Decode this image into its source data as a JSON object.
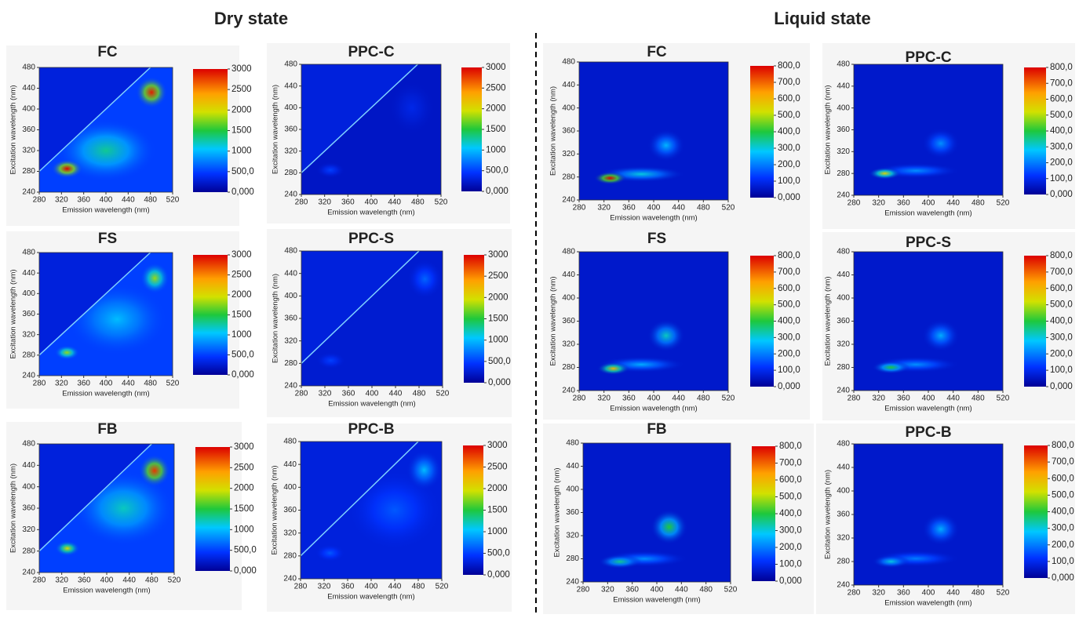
{
  "headings": {
    "dry": "Dry state",
    "liquid": "Liquid state"
  },
  "chart_data": [
    {
      "type": "heatmap",
      "title": "FC",
      "x_label": "Emission wavelength (nm)",
      "y_label": "Excitation wavelength (nm)",
      "xlim": [
        280,
        520
      ],
      "ylim": [
        240,
        480
      ],
      "xticks": [
        280,
        320,
        360,
        400,
        440,
        480,
        520
      ],
      "yticks": [
        240,
        280,
        320,
        360,
        400,
        440,
        480
      ],
      "colorbar_lim": [
        0,
        3000
      ],
      "colorbar_ticks": [
        {
          "value": 0,
          "label": "0,000"
        },
        {
          "value": 500,
          "label": "500,0"
        },
        1000,
        1500,
        2000,
        2500,
        3000
      ],
      "rayleigh_line": true,
      "base": 500,
      "peaks": [
        {
          "x": 400,
          "y": 320,
          "value": 1300,
          "sx": 90,
          "sy": 60
        },
        {
          "x": 330,
          "y": 285,
          "value": 3000,
          "sx": 28,
          "sy": 18
        },
        {
          "x": 482,
          "y": 432,
          "value": 2900,
          "sx": 28,
          "sy": 30
        }
      ]
    },
    {
      "type": "heatmap",
      "title": "FS",
      "x_label": "Emission wavelength (nm)",
      "y_label": "Excitation wavelength (nm)",
      "xlim": [
        280,
        520
      ],
      "ylim": [
        240,
        480
      ],
      "xticks": [
        280,
        320,
        360,
        400,
        440,
        480,
        520
      ],
      "yticks": [
        240,
        280,
        320,
        360,
        400,
        440,
        480
      ],
      "colorbar_lim": [
        0,
        3000
      ],
      "colorbar_ticks": [
        {
          "value": 0,
          "label": "0,000"
        },
        {
          "value": 500,
          "label": "500,0"
        },
        1000,
        1500,
        2000,
        2500,
        3000
      ],
      "rayleigh_line": true,
      "base": 500,
      "peaks": [
        {
          "x": 420,
          "y": 350,
          "value": 1000,
          "sx": 90,
          "sy": 70
        },
        {
          "x": 330,
          "y": 285,
          "value": 1800,
          "sx": 22,
          "sy": 14
        },
        {
          "x": 488,
          "y": 430,
          "value": 1800,
          "sx": 26,
          "sy": 30
        }
      ]
    },
    {
      "type": "heatmap",
      "title": "FB",
      "x_label": "Emission wavelength (nm)",
      "y_label": "Excitation wavelength (nm)",
      "xlim": [
        280,
        520
      ],
      "ylim": [
        240,
        480
      ],
      "xticks": [
        280,
        320,
        360,
        400,
        440,
        480,
        520
      ],
      "yticks": [
        240,
        280,
        320,
        360,
        400,
        440,
        480
      ],
      "colorbar_lim": [
        0,
        3000
      ],
      "colorbar_ticks": [
        {
          "value": 0,
          "label": "0,000"
        },
        {
          "value": 500,
          "label": "500,0"
        },
        1000,
        1500,
        2000,
        2500,
        3000
      ],
      "rayleigh_line": true,
      "base": 500,
      "peaks": [
        {
          "x": 430,
          "y": 360,
          "value": 1200,
          "sx": 90,
          "sy": 70
        },
        {
          "x": 330,
          "y": 285,
          "value": 2000,
          "sx": 22,
          "sy": 14
        },
        {
          "x": 485,
          "y": 430,
          "value": 2800,
          "sx": 28,
          "sy": 30
        }
      ]
    },
    {
      "type": "heatmap",
      "title": "PPC-C",
      "x_label": "Emission wavelength (nm)",
      "y_label": "Excitation wavelength (nm)",
      "xlim": [
        280,
        520
      ],
      "ylim": [
        240,
        480
      ],
      "xticks": [
        280,
        320,
        360,
        400,
        440,
        480,
        520
      ],
      "yticks": [
        240,
        280,
        320,
        360,
        400,
        440,
        480
      ],
      "colorbar_lim": [
        0,
        3000
      ],
      "colorbar_ticks": [
        {
          "value": 0,
          "label": "0,000"
        },
        {
          "value": 500,
          "label": "500,0"
        },
        1000,
        1500,
        2000,
        2500,
        3000
      ],
      "rayleigh_line": true,
      "base": 200,
      "peaks": [
        {
          "x": 330,
          "y": 285,
          "value": 500,
          "sx": 25,
          "sy": 15
        },
        {
          "x": 470,
          "y": 400,
          "value": 350,
          "sx": 40,
          "sy": 50
        }
      ]
    },
    {
      "type": "heatmap",
      "title": "PPC-S",
      "x_label": "Emission wavelength (nm)",
      "y_label": "Excitation wavelength (nm)",
      "xlim": [
        280,
        520
      ],
      "ylim": [
        240,
        480
      ],
      "xticks": [
        280,
        320,
        360,
        400,
        440,
        480,
        520
      ],
      "yticks": [
        240,
        280,
        320,
        360,
        400,
        440,
        480
      ],
      "colorbar_lim": [
        0,
        3000
      ],
      "colorbar_ticks": [
        {
          "value": 0,
          "label": "0,000"
        },
        {
          "value": 500,
          "label": "500,0"
        },
        1000,
        1500,
        2000,
        2500,
        3000
      ],
      "rayleigh_line": true,
      "base": 250,
      "peaks": [
        {
          "x": 330,
          "y": 285,
          "value": 500,
          "sx": 25,
          "sy": 15
        },
        {
          "x": 490,
          "y": 430,
          "value": 650,
          "sx": 30,
          "sy": 35
        }
      ]
    },
    {
      "type": "heatmap",
      "title": "PPC-B",
      "x_label": "Emission wavelength (nm)",
      "y_label": "Excitation wavelength (nm)",
      "xlim": [
        280,
        520
      ],
      "ylim": [
        240,
        480
      ],
      "xticks": [
        280,
        320,
        360,
        400,
        440,
        480,
        520
      ],
      "yticks": [
        240,
        280,
        320,
        360,
        400,
        440,
        480
      ],
      "colorbar_lim": [
        0,
        3000
      ],
      "colorbar_ticks": [
        {
          "value": 0,
          "label": "0,000"
        },
        {
          "value": 500,
          "label": "500,0"
        },
        1000,
        1500,
        2000,
        2500,
        3000
      ],
      "rayleigh_line": true,
      "base": 300,
      "peaks": [
        {
          "x": 440,
          "y": 360,
          "value": 600,
          "sx": 80,
          "sy": 70
        },
        {
          "x": 330,
          "y": 285,
          "value": 600,
          "sx": 25,
          "sy": 15
        },
        {
          "x": 490,
          "y": 430,
          "value": 1000,
          "sx": 30,
          "sy": 35
        }
      ]
    },
    {
      "type": "heatmap",
      "title": "FC",
      "x_label": "Emission wavelength (nm)",
      "y_label": "Excitation wavelength (nm)",
      "xlim": [
        280,
        520
      ],
      "ylim": [
        240,
        480
      ],
      "xticks": [
        280,
        320,
        360,
        400,
        440,
        480,
        520
      ],
      "yticks": [
        240,
        280,
        320,
        360,
        400,
        440,
        480
      ],
      "colorbar_lim": [
        0,
        800
      ],
      "colorbar_ticks": [
        {
          "value": 0,
          "label": "0,000"
        },
        {
          "value": 100,
          "label": "100,0"
        },
        {
          "value": 200,
          "label": "200,0"
        },
        {
          "value": 300,
          "label": "300,0"
        },
        {
          "value": 400,
          "label": "400,0"
        },
        {
          "value": 500,
          "label": "500,0"
        },
        {
          "value": 600,
          "label": "600,0"
        },
        {
          "value": 700,
          "label": "700,0"
        },
        {
          "value": 800,
          "label": "800,0"
        }
      ],
      "rayleigh_line": false,
      "base": 60,
      "peaks": [
        {
          "x": 380,
          "y": 285,
          "value": 300,
          "sx": 70,
          "sy": 14
        },
        {
          "x": 420,
          "y": 335,
          "value": 260,
          "sx": 30,
          "sy": 28
        },
        {
          "x": 330,
          "y": 278,
          "value": 800,
          "sx": 26,
          "sy": 11
        }
      ]
    },
    {
      "type": "heatmap",
      "title": "FS",
      "x_label": "Emission wavelength (nm)",
      "y_label": "Excitation wavelength (nm)",
      "xlim": [
        280,
        520
      ],
      "ylim": [
        240,
        480
      ],
      "xticks": [
        280,
        320,
        360,
        400,
        440,
        480,
        520
      ],
      "yticks": [
        240,
        280,
        320,
        360,
        400,
        440,
        480
      ],
      "colorbar_lim": [
        0,
        800
      ],
      "colorbar_ticks": [
        {
          "value": 0,
          "label": "0,000"
        },
        {
          "value": 100,
          "label": "100,0"
        },
        {
          "value": 200,
          "label": "200,0"
        },
        {
          "value": 300,
          "label": "300,0"
        },
        {
          "value": 400,
          "label": "400,0"
        },
        {
          "value": 500,
          "label": "500,0"
        },
        {
          "value": 600,
          "label": "600,0"
        },
        {
          "value": 700,
          "label": "700,0"
        },
        {
          "value": 800,
          "label": "800,0"
        }
      ],
      "rayleigh_line": false,
      "base": 60,
      "peaks": [
        {
          "x": 380,
          "y": 285,
          "value": 250,
          "sx": 70,
          "sy": 14
        },
        {
          "x": 420,
          "y": 335,
          "value": 320,
          "sx": 30,
          "sy": 28
        },
        {
          "x": 335,
          "y": 278,
          "value": 600,
          "sx": 26,
          "sy": 11
        }
      ]
    },
    {
      "type": "heatmap",
      "title": "FB",
      "x_label": "Emission wavelength (nm)",
      "y_label": "Excitation wavelength (nm)",
      "xlim": [
        280,
        520
      ],
      "ylim": [
        240,
        480
      ],
      "xticks": [
        280,
        320,
        360,
        400,
        440,
        480,
        520
      ],
      "yticks": [
        240,
        280,
        320,
        360,
        400,
        440,
        480
      ],
      "colorbar_lim": [
        0,
        800
      ],
      "colorbar_ticks": [
        {
          "value": 0,
          "label": "0,000"
        },
        {
          "value": 100,
          "label": "100,0"
        },
        {
          "value": 200,
          "label": "200,0"
        },
        {
          "value": 300,
          "label": "300,0"
        },
        {
          "value": 400,
          "label": "400,0"
        },
        {
          "value": 500,
          "label": "500,0"
        },
        {
          "value": 600,
          "label": "600,0"
        },
        {
          "value": 700,
          "label": "700,0"
        },
        {
          "value": 800,
          "label": "800,0"
        }
      ],
      "rayleigh_line": false,
      "base": 60,
      "peaks": [
        {
          "x": 380,
          "y": 280,
          "value": 220,
          "sx": 70,
          "sy": 14
        },
        {
          "x": 420,
          "y": 335,
          "value": 400,
          "sx": 30,
          "sy": 30
        },
        {
          "x": 340,
          "y": 275,
          "value": 350,
          "sx": 35,
          "sy": 12
        }
      ]
    },
    {
      "type": "heatmap",
      "title": "PPC-C",
      "x_label": "Emission wavelength (nm)",
      "y_label": "Excitation wavelength (nm)",
      "xlim": [
        280,
        520
      ],
      "ylim": [
        240,
        480
      ],
      "xticks": [
        280,
        320,
        360,
        400,
        440,
        480,
        520
      ],
      "yticks": [
        240,
        280,
        320,
        360,
        400,
        440,
        480
      ],
      "colorbar_lim": [
        0,
        800
      ],
      "colorbar_ticks": [
        {
          "value": 0,
          "label": "0,000"
        },
        {
          "value": 100,
          "label": "100,0"
        },
        {
          "value": 200,
          "label": "200,0"
        },
        {
          "value": 300,
          "label": "300,0"
        },
        {
          "value": 400,
          "label": "400,0"
        },
        {
          "value": 500,
          "label": "500,0"
        },
        {
          "value": 600,
          "label": "600,0"
        },
        {
          "value": 700,
          "label": "700,0"
        },
        {
          "value": 800,
          "label": "800,0"
        }
      ],
      "rayleigh_line": false,
      "base": 60,
      "peaks": [
        {
          "x": 380,
          "y": 285,
          "value": 220,
          "sx": 70,
          "sy": 14
        },
        {
          "x": 420,
          "y": 335,
          "value": 220,
          "sx": 30,
          "sy": 28
        },
        {
          "x": 330,
          "y": 280,
          "value": 550,
          "sx": 26,
          "sy": 11
        }
      ]
    },
    {
      "type": "heatmap",
      "title": "PPC-S",
      "x_label": "Emission wavelength (nm)",
      "y_label": "Excitation wavelength (nm)",
      "xlim": [
        280,
        520
      ],
      "ylim": [
        240,
        480
      ],
      "xticks": [
        280,
        320,
        360,
        400,
        440,
        480,
        520
      ],
      "yticks": [
        240,
        280,
        320,
        360,
        400,
        440,
        480
      ],
      "colorbar_lim": [
        0,
        800
      ],
      "colorbar_ticks": [
        {
          "value": 0,
          "label": "0,000"
        },
        {
          "value": 100,
          "label": "100,0"
        },
        {
          "value": 200,
          "label": "200,0"
        },
        {
          "value": 300,
          "label": "300,0"
        },
        {
          "value": 400,
          "label": "400,0"
        },
        {
          "value": 500,
          "label": "500,0"
        },
        {
          "value": 600,
          "label": "600,0"
        },
        {
          "value": 700,
          "label": "700,0"
        },
        {
          "value": 800,
          "label": "800,0"
        }
      ],
      "rayleigh_line": false,
      "base": 60,
      "peaks": [
        {
          "x": 380,
          "y": 285,
          "value": 220,
          "sx": 70,
          "sy": 14
        },
        {
          "x": 420,
          "y": 335,
          "value": 250,
          "sx": 30,
          "sy": 28
        },
        {
          "x": 340,
          "y": 280,
          "value": 400,
          "sx": 30,
          "sy": 11
        }
      ]
    },
    {
      "type": "heatmap",
      "title": "PPC-B",
      "x_label": "Emission wavelength (nm)",
      "y_label": "Excitation wavelength (nm)",
      "xlim": [
        280,
        520
      ],
      "ylim": [
        240,
        480
      ],
      "xticks": [
        280,
        320,
        360,
        400,
        440,
        480,
        520
      ],
      "yticks": [
        240,
        280,
        320,
        360,
        400,
        440,
        480
      ],
      "colorbar_lim": [
        0,
        800
      ],
      "colorbar_ticks": [
        {
          "value": 0,
          "label": "0,000"
        },
        {
          "value": 100,
          "label": "100,0"
        },
        {
          "value": 200,
          "label": "200,0"
        },
        {
          "value": 300,
          "label": "300,0"
        },
        {
          "value": 400,
          "label": "400,0"
        },
        {
          "value": 500,
          "label": "500,0"
        },
        {
          "value": 600,
          "label": "600,0"
        },
        {
          "value": 700,
          "label": "700,0"
        },
        {
          "value": 800,
          "label": "800,0"
        }
      ],
      "rayleigh_line": false,
      "base": 60,
      "peaks": [
        {
          "x": 380,
          "y": 285,
          "value": 200,
          "sx": 70,
          "sy": 14
        },
        {
          "x": 420,
          "y": 335,
          "value": 250,
          "sx": 30,
          "sy": 28
        },
        {
          "x": 340,
          "y": 280,
          "value": 300,
          "sx": 30,
          "sy": 11
        }
      ]
    }
  ]
}
